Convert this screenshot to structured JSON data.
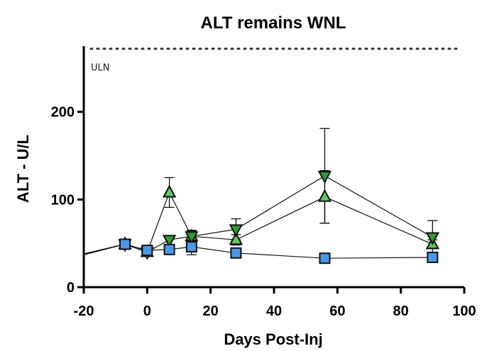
{
  "chart_data": {
    "type": "line",
    "title": "ALT remains WNL",
    "xlabel": "Days Post-Inj",
    "ylabel": "ALT - U/L",
    "xlim": [
      -20,
      100
    ],
    "ylim": [
      0,
      275
    ],
    "xticks": [
      -20,
      0,
      20,
      40,
      60,
      80,
      100
    ],
    "yticks": [
      0,
      100,
      200
    ],
    "grid": false,
    "reference_line": {
      "label": "ULN",
      "y": 272,
      "style": "dotted"
    },
    "series": [
      {
        "marker": "triangle-up",
        "color": "#5cc95c",
        "points": [
          {
            "x": -20,
            "y": 38
          },
          {
            "x": -7,
            "y": 49
          },
          {
            "x": 0,
            "y": 40
          },
          {
            "x": 7,
            "y": 108,
            "err": 17
          },
          {
            "x": 14,
            "y": 58,
            "err": 7
          },
          {
            "x": 28,
            "y": 54,
            "err": 6
          },
          {
            "x": 56,
            "y": 103,
            "err": 30
          },
          {
            "x": 90,
            "y": 49,
            "err": 5
          }
        ]
      },
      {
        "marker": "triangle-down",
        "color": "#2f9e2f",
        "points": [
          {
            "x": -20,
            "y": 38
          },
          {
            "x": -7,
            "y": 49
          },
          {
            "x": 0,
            "y": 40
          },
          {
            "x": 7,
            "y": 54
          },
          {
            "x": 14,
            "y": 58,
            "err": 6
          },
          {
            "x": 28,
            "y": 66,
            "err": 12
          },
          {
            "x": 56,
            "y": 127,
            "err": 54
          },
          {
            "x": 90,
            "y": 57,
            "err": 19
          }
        ]
      },
      {
        "marker": "square",
        "color": "#4b97e8",
        "points": [
          {
            "x": -20,
            "y": 37
          },
          {
            "x": -7,
            "y": 49
          },
          {
            "x": 0,
            "y": 42
          },
          {
            "x": 7,
            "y": 43
          },
          {
            "x": 14,
            "y": 46,
            "err": 9
          },
          {
            "x": 28,
            "y": 39
          },
          {
            "x": 56,
            "y": 33
          },
          {
            "x": 90,
            "y": 34
          }
        ]
      }
    ]
  }
}
